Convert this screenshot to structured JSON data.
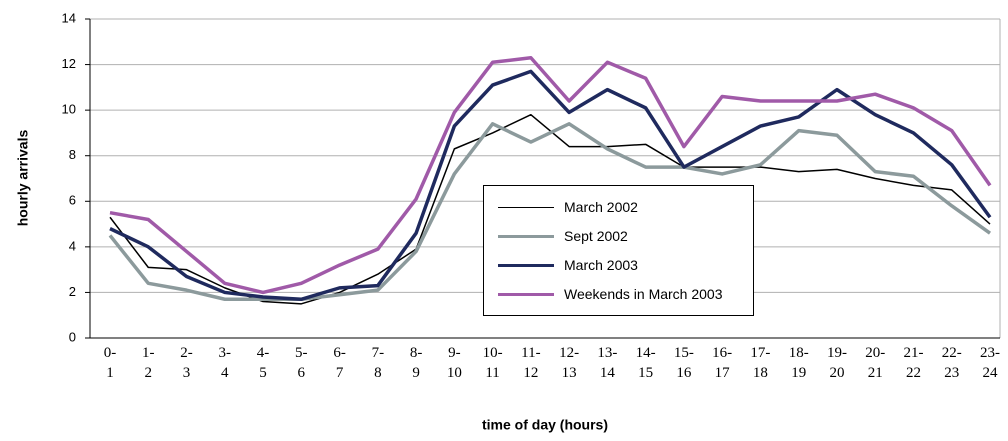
{
  "chart_data": {
    "type": "line",
    "y_label": "hourly arrivals",
    "x_label": "time of day (hours)",
    "categories": [
      "0-\n1",
      "1-\n2",
      "2-\n3",
      "3-\n4",
      "4-\n5",
      "5-\n6",
      "6-\n7",
      "7-\n8",
      "8-\n9",
      "9-\n10",
      "10-\n11",
      "11-\n12",
      "12-\n13",
      "13-\n14",
      "14-\n15",
      "15-\n16",
      "16-\n17",
      "17-\n18",
      "18-\n19",
      "19-\n20",
      "20-\n21",
      "21-\n22",
      "22-\n23",
      "23-\n24"
    ],
    "ylim": [
      0,
      14
    ],
    "yticks": [
      0,
      2,
      4,
      6,
      8,
      10,
      12,
      14
    ],
    "grid": true,
    "series": [
      {
        "name": "March 2002",
        "color": "#000000",
        "width": 1.5,
        "values": [
          5.3,
          3.1,
          3.0,
          2.2,
          1.6,
          1.5,
          2.0,
          2.8,
          3.9,
          8.3,
          9.0,
          9.8,
          8.4,
          8.4,
          8.5,
          7.5,
          7.5,
          7.5,
          7.3,
          7.4,
          7.0,
          6.7,
          6.5,
          5.0
        ]
      },
      {
        "name": "Sept 2002",
        "color": "#8c9a9c",
        "width": 3.5,
        "values": [
          4.5,
          2.4,
          2.1,
          1.7,
          1.7,
          1.7,
          1.9,
          2.1,
          3.8,
          7.2,
          9.4,
          8.6,
          9.4,
          8.3,
          7.5,
          7.5,
          7.2,
          7.6,
          9.1,
          8.9,
          7.3,
          7.1,
          5.8,
          4.6
        ]
      },
      {
        "name": "March 2003",
        "color": "#1f2a5e",
        "width": 3.5,
        "values": [
          4.8,
          4.0,
          2.7,
          2.0,
          1.8,
          1.7,
          2.2,
          2.3,
          4.6,
          9.3,
          11.1,
          11.7,
          9.9,
          10.9,
          10.1,
          7.5,
          8.4,
          9.3,
          9.7,
          10.9,
          9.8,
          9.0,
          7.6,
          5.3
        ]
      },
      {
        "name": "Weekends in March 2003",
        "color": "#a05aa8",
        "width": 3.5,
        "values": [
          5.5,
          5.2,
          3.8,
          2.4,
          2.0,
          2.4,
          3.2,
          3.9,
          6.1,
          9.9,
          12.1,
          12.3,
          10.4,
          12.1,
          11.4,
          8.4,
          10.6,
          10.4,
          10.4,
          10.4,
          10.7,
          10.1,
          9.1,
          6.7
        ]
      }
    ]
  }
}
